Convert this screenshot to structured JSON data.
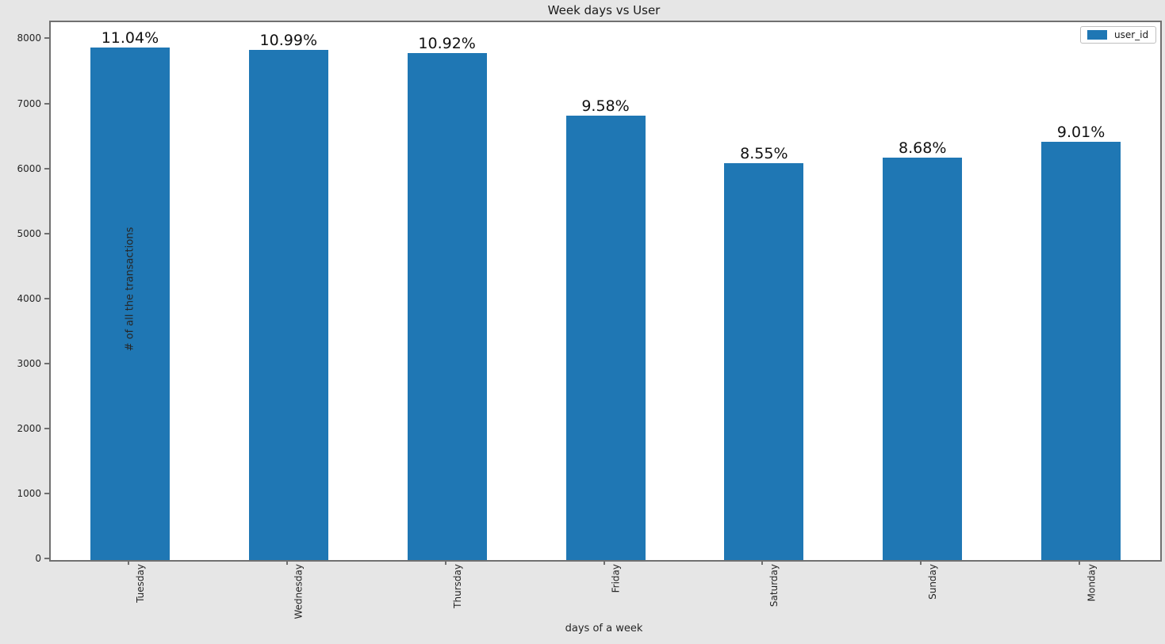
{
  "chart_data": {
    "type": "bar",
    "title": "Week days vs User",
    "xlabel": "days of a week",
    "ylabel": "# of all the transactions",
    "categories": [
      "Tuesday",
      "Wednesday",
      "Thursday",
      "Friday",
      "Saturday",
      "Sunday",
      "Monday"
    ],
    "series": [
      {
        "name": "user_id",
        "values": [
          7880,
          7844,
          7794,
          6838,
          6103,
          6196,
          6431
        ]
      }
    ],
    "bar_labels": [
      "11.04%",
      "10.99%",
      "10.92%",
      "9.58%",
      "8.55%",
      "8.68%",
      "9.01%"
    ],
    "yticks": [
      0,
      1000,
      2000,
      3000,
      4000,
      5000,
      6000,
      7000,
      8000
    ],
    "ylim": [
      0,
      8274
    ],
    "grid": false,
    "legend": {
      "label": "user_id",
      "position": "upper right"
    },
    "colors": {
      "bar": "#1f77b4",
      "figure_background": "#e6e6e6",
      "plot_background": "#ffffff",
      "spine": "#707070"
    }
  }
}
